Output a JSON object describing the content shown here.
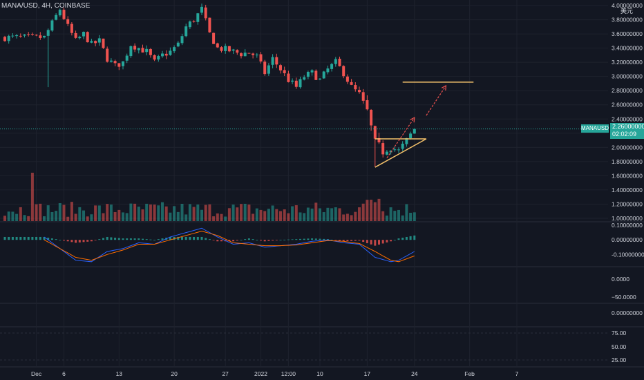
{
  "header": {
    "symbol_line": "MANA/USD, 4H, COINBASE",
    "currency_label": "美元"
  },
  "price_marker": {
    "symbol": "MANAUSD",
    "price": "2.26000000",
    "countdown": "02:02:09"
  },
  "colors": {
    "background": "#131722",
    "up": "#26a69a",
    "down": "#ef5350",
    "grid": "#1e222d",
    "pattern_line": "#f5c26b",
    "arrow": "#ef5350",
    "macd_line": "#2962ff",
    "signal_line": "#ff6d00"
  },
  "chart_data": {
    "type": "candlestick",
    "panes": [
      {
        "name": "price",
        "y_ticks": [
          "4.00000000",
          "3.80000000",
          "3.60000000",
          "3.40000000",
          "3.20000000",
          "3.00000000",
          "2.80000000",
          "2.60000000",
          "2.40000000",
          "2.20000000",
          "2.00000000",
          "1.80000000",
          "1.60000000",
          "1.40000000",
          "1.20000000",
          "1.00000000"
        ],
        "ylim": [
          0.98,
          4.02
        ],
        "current_price": 2.26,
        "approx_close_path": [
          [
            0,
            3.55
          ],
          [
            4,
            3.95
          ],
          [
            6,
            3.7
          ],
          [
            8,
            3.5
          ],
          [
            10,
            3.6
          ],
          [
            12,
            3.45
          ],
          [
            14,
            3.5
          ],
          [
            16,
            3.25
          ],
          [
            18,
            3.15
          ],
          [
            20,
            3.2
          ],
          [
            22,
            3.45
          ],
          [
            24,
            3.4
          ],
          [
            26,
            3.35
          ],
          [
            28,
            3.2
          ],
          [
            30,
            3.3
          ],
          [
            32,
            3.35
          ],
          [
            34,
            3.45
          ],
          [
            36,
            3.7
          ],
          [
            38,
            3.8
          ],
          [
            40,
            3.95
          ],
          [
            42,
            3.6
          ],
          [
            44,
            3.4
          ],
          [
            46,
            3.38
          ],
          [
            48,
            3.35
          ],
          [
            50,
            3.32
          ],
          [
            52,
            3.34
          ],
          [
            54,
            3.28
          ],
          [
            56,
            3.05
          ],
          [
            58,
            3.25
          ],
          [
            60,
            3.1
          ],
          [
            62,
            2.95
          ],
          [
            64,
            2.85
          ],
          [
            66,
            3.0
          ],
          [
            68,
            3.05
          ],
          [
            70,
            2.95
          ],
          [
            72,
            3.1
          ],
          [
            74,
            3.2
          ],
          [
            76,
            3.05
          ],
          [
            78,
            2.85
          ],
          [
            80,
            2.75
          ],
          [
            82,
            2.5
          ],
          [
            84,
            2.05
          ],
          [
            86,
            1.95
          ],
          [
            88,
            2.0
          ],
          [
            90,
            1.95
          ],
          [
            92,
            2.1
          ],
          [
            94,
            2.26
          ]
        ],
        "annotations": [
          {
            "type": "trend_line",
            "from": [
              84,
              2.12
            ],
            "to": [
              97,
              2.12
            ]
          },
          {
            "type": "trend_line",
            "from": [
              84,
              1.72
            ],
            "to": [
              97,
              2.12
            ]
          },
          {
            "type": "arrow",
            "from": [
              87,
              1.85
            ],
            "to": [
              94,
              2.42
            ]
          },
          {
            "type": "arrow",
            "from": [
              97,
              2.45
            ],
            "to": [
              102,
              2.87
            ]
          },
          {
            "type": "horizontal_level",
            "from": [
              91,
              2.92
            ],
            "to": [
              109,
              2.92
            ],
            "value": 2.92
          }
        ]
      },
      {
        "name": "macd",
        "y_ticks": [
          "0.10000000",
          "0.00000000",
          "-0.10000000"
        ],
        "ylim": [
          -0.17,
          0.11
        ],
        "approx_macd_path": [
          [
            0,
            0.02
          ],
          [
            8,
            -0.14
          ],
          [
            12,
            -0.15
          ],
          [
            16,
            -0.08
          ],
          [
            20,
            -0.06
          ],
          [
            24,
            -0.02
          ],
          [
            28,
            -0.03
          ],
          [
            32,
            0.02
          ],
          [
            36,
            0.05
          ],
          [
            40,
            0.08
          ],
          [
            44,
            0.02
          ],
          [
            48,
            -0.03
          ],
          [
            52,
            -0.02
          ],
          [
            56,
            -0.05
          ],
          [
            60,
            -0.04
          ],
          [
            64,
            -0.03
          ],
          [
            68,
            -0.01
          ],
          [
            72,
            0.0
          ],
          [
            76,
            -0.02
          ],
          [
            80,
            -0.03
          ],
          [
            84,
            -0.12
          ],
          [
            88,
            -0.15
          ],
          [
            90,
            -0.14
          ],
          [
            94,
            -0.08
          ]
        ],
        "approx_signal_path": [
          [
            0,
            0.0
          ],
          [
            8,
            -0.12
          ],
          [
            12,
            -0.14
          ],
          [
            16,
            -0.1
          ],
          [
            20,
            -0.07
          ],
          [
            24,
            -0.03
          ],
          [
            28,
            -0.03
          ],
          [
            32,
            0.0
          ],
          [
            36,
            0.03
          ],
          [
            40,
            0.06
          ],
          [
            44,
            0.03
          ],
          [
            48,
            -0.02
          ],
          [
            52,
            -0.03
          ],
          [
            56,
            -0.04
          ],
          [
            60,
            -0.04
          ],
          [
            64,
            -0.035
          ],
          [
            68,
            -0.02
          ],
          [
            72,
            -0.005
          ],
          [
            76,
            -0.01
          ],
          [
            80,
            -0.025
          ],
          [
            84,
            -0.08
          ],
          [
            88,
            -0.14
          ],
          [
            90,
            -0.15
          ],
          [
            94,
            -0.11
          ]
        ]
      },
      {
        "name": "oscillator",
        "y_ticks": [
          "0.0000",
          "−50.0000"
        ]
      },
      {
        "name": "indicator",
        "y_ticks": [
          "0.00000000"
        ]
      },
      {
        "name": "rsi",
        "y_ticks": [
          "75.00",
          "50.00",
          "25.00"
        ]
      }
    ],
    "x_tick_labels": [
      {
        "label": "Dec",
        "i": -2
      },
      {
        "label": "6",
        "i": 5
      },
      {
        "label": "13",
        "i": 19
      },
      {
        "label": "20",
        "i": 33
      },
      {
        "label": "27",
        "i": 46
      },
      {
        "label": "2022",
        "i": 55
      },
      {
        "label": "12:00",
        "i": 62
      },
      {
        "label": "10",
        "i": 70
      },
      {
        "label": "17",
        "i": 82
      },
      {
        "label": "24",
        "i": 94
      },
      {
        "label": "Feb",
        "i": 108
      },
      {
        "label": "7",
        "i": 120
      }
    ]
  }
}
